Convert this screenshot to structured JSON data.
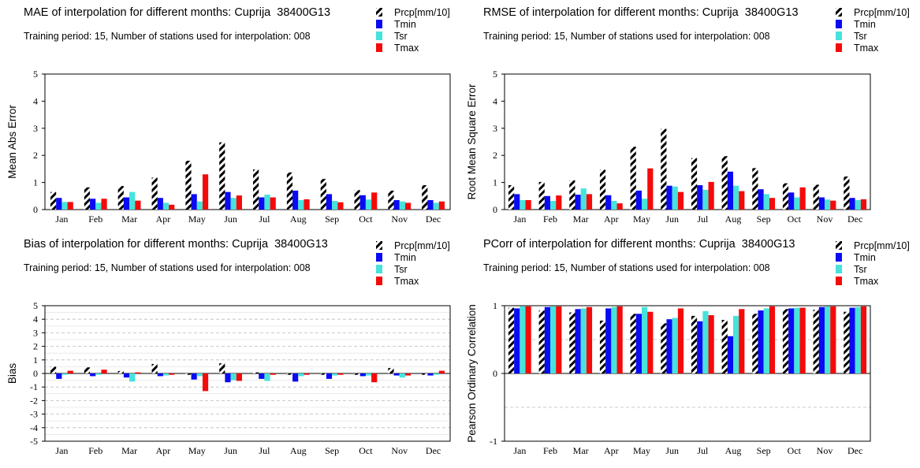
{
  "months": [
    "Jan",
    "Feb",
    "Mar",
    "Apr",
    "May",
    "Jun",
    "Jul",
    "Aug",
    "Sep",
    "Oct",
    "Nov",
    "Dec"
  ],
  "colors": {
    "Prcp": "hatch-black-white",
    "Tmin": "#0a0af5",
    "Tsr": "#45e3dc",
    "Tmax": "#f50a0a"
  },
  "chart_data": [
    {
      "type": "bar",
      "title": "MAE of interpolation for different months: Cuprija  38400G13",
      "subtitle": "Training period: 15, Number of stations used for interpolation: 008",
      "xlabel": "",
      "ylabel": "Mean Abs Error",
      "ylim": [
        0,
        5
      ],
      "yticks": [
        "0",
        "1",
        "2",
        "3",
        "4",
        "5"
      ],
      "grid": false,
      "legend_position": "top-right",
      "categories": [
        "Jan",
        "Feb",
        "Mar",
        "Apr",
        "May",
        "Jun",
        "Jul",
        "Aug",
        "Sep",
        "Oct",
        "Nov",
        "Dec"
      ],
      "series": [
        {
          "name": "Prcp[mm/10]",
          "values": [
            0.65,
            0.82,
            0.87,
            1.18,
            1.8,
            2.48,
            1.48,
            1.37,
            1.13,
            0.72,
            0.7,
            0.9
          ]
        },
        {
          "name": "Tmin",
          "values": [
            0.43,
            0.4,
            0.45,
            0.43,
            0.57,
            0.65,
            0.45,
            0.7,
            0.57,
            0.53,
            0.35,
            0.35
          ]
        },
        {
          "name": "Tsr",
          "values": [
            0.28,
            0.25,
            0.65,
            0.25,
            0.3,
            0.43,
            0.55,
            0.35,
            0.32,
            0.37,
            0.3,
            0.25
          ]
        },
        {
          "name": "Tmax",
          "values": [
            0.28,
            0.4,
            0.33,
            0.18,
            1.3,
            0.52,
            0.45,
            0.38,
            0.27,
            0.63,
            0.25,
            0.3
          ]
        }
      ]
    },
    {
      "type": "bar",
      "title": "RMSE of interpolation for different months: Cuprija  38400G13",
      "subtitle": "Training period: 15, Number of stations used for interpolation: 008",
      "xlabel": "",
      "ylabel": "Root Mean Square Error",
      "ylim": [
        0,
        5
      ],
      "yticks": [
        "0",
        "1",
        "2",
        "3",
        "4",
        "5"
      ],
      "grid": false,
      "legend_position": "top-right",
      "categories": [
        "Jan",
        "Feb",
        "Mar",
        "Apr",
        "May",
        "Jun",
        "Jul",
        "Aug",
        "Sep",
        "Oct",
        "Nov",
        "Dec"
      ],
      "series": [
        {
          "name": "Prcp[mm/10]",
          "values": [
            0.9,
            1.02,
            1.08,
            1.47,
            2.32,
            2.98,
            1.9,
            1.97,
            1.53,
            0.97,
            0.92,
            1.22
          ]
        },
        {
          "name": "Tmin",
          "values": [
            0.57,
            0.5,
            0.55,
            0.53,
            0.7,
            0.88,
            0.9,
            1.4,
            0.75,
            0.63,
            0.45,
            0.43
          ]
        },
        {
          "name": "Tsr",
          "values": [
            0.35,
            0.32,
            0.78,
            0.32,
            0.4,
            0.85,
            0.73,
            0.88,
            0.57,
            0.45,
            0.37,
            0.35
          ]
        },
        {
          "name": "Tmax",
          "values": [
            0.35,
            0.52,
            0.57,
            0.23,
            1.52,
            0.65,
            1.02,
            0.68,
            0.43,
            0.82,
            0.33,
            0.38
          ]
        }
      ]
    },
    {
      "type": "bar",
      "title": "Bias of interpolation for different months: Cuprija  38400G13",
      "subtitle": "Training period: 15, Number of stations used for interpolation: 008",
      "xlabel": "",
      "ylabel": "Bias",
      "ylim": [
        -5,
        5
      ],
      "yticks": [
        "-5",
        "-4",
        "-3",
        "-2",
        "-1",
        "0",
        "1",
        "2",
        "3",
        "4",
        "5"
      ],
      "grid": true,
      "legend_position": "top-right",
      "categories": [
        "Jan",
        "Feb",
        "Mar",
        "Apr",
        "May",
        "Jun",
        "Jul",
        "Aug",
        "Sep",
        "Oct",
        "Nov",
        "Dec"
      ],
      "series": [
        {
          "name": "Prcp[mm/10]",
          "values": [
            0.5,
            0.45,
            0.18,
            0.7,
            -0.1,
            0.75,
            0.08,
            -0.1,
            -0.1,
            -0.1,
            0.4,
            -0.1
          ]
        },
        {
          "name": "Tmin",
          "values": [
            -0.4,
            -0.2,
            -0.3,
            -0.2,
            -0.45,
            -0.65,
            -0.4,
            -0.6,
            -0.4,
            -0.2,
            -0.15,
            -0.15
          ]
        },
        {
          "name": "Tsr",
          "values": [
            -0.1,
            -0.1,
            -0.6,
            -0.15,
            -0.2,
            -0.5,
            -0.55,
            -0.2,
            -0.15,
            -0.15,
            -0.3,
            -0.1
          ]
        },
        {
          "name": "Tmax",
          "values": [
            0.2,
            0.28,
            0.08,
            -0.1,
            -1.3,
            -0.55,
            -0.1,
            -0.1,
            -0.1,
            -0.65,
            -0.15,
            0.2
          ]
        }
      ]
    },
    {
      "type": "bar",
      "title": "PCorr of interpolation for different months: Cuprija  38400G13",
      "subtitle": "Training period: 15, Number of stations used for interpolation: 008",
      "xlabel": "",
      "ylabel": "Pearson Ordinary Correlation",
      "ylim": [
        -1,
        1
      ],
      "yticks": [
        "-1",
        "0",
        "1"
      ],
      "grid": true,
      "legend_position": "top-right",
      "categories": [
        "Jan",
        "Feb",
        "Mar",
        "Apr",
        "May",
        "Jun",
        "Jul",
        "Aug",
        "Sep",
        "Oct",
        "Nov",
        "Dec"
      ],
      "series": [
        {
          "name": "Prcp[mm/10]",
          "values": [
            0.97,
            0.93,
            0.9,
            0.78,
            0.88,
            0.74,
            0.85,
            0.79,
            0.88,
            0.95,
            0.94,
            0.91
          ]
        },
        {
          "name": "Tmin",
          "values": [
            0.96,
            0.98,
            0.95,
            0.96,
            0.88,
            0.8,
            0.77,
            0.55,
            0.93,
            0.96,
            0.98,
            0.97
          ]
        },
        {
          "name": "Tsr",
          "values": [
            0.99,
            0.99,
            0.96,
            0.98,
            0.98,
            0.82,
            0.92,
            0.85,
            0.96,
            0.97,
            0.99,
            0.98
          ]
        },
        {
          "name": "Tmax",
          "values": [
            0.99,
            0.99,
            0.98,
            0.99,
            0.91,
            0.96,
            0.86,
            0.95,
            0.99,
            0.97,
            0.99,
            0.99
          ]
        }
      ]
    }
  ]
}
